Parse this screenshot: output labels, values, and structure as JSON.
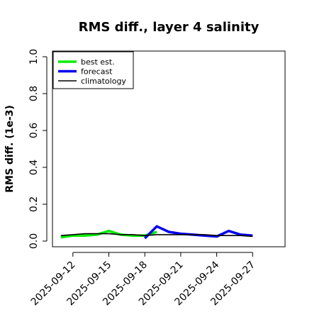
{
  "chart_data": {
    "type": "line",
    "title": "RMS diff., layer 4 salinity",
    "xlabel": "",
    "ylabel": "RMS diff. (1e-3)",
    "ylim": [
      0.0,
      1.0
    ],
    "yticks": [
      "0.0",
      "0.2",
      "0.4",
      "0.6",
      "0.8",
      "1.0"
    ],
    "xticks": [
      {
        "date": "2025-09-12",
        "label": "2025-09-12",
        "color": "#000000"
      },
      {
        "date": "2025-09-15",
        "label": "2025-09-15",
        "color": "#000000"
      },
      {
        "date": "2025-09-18",
        "label": "2025-09-18",
        "color": "#228B22"
      },
      {
        "date": "2025-09-21",
        "label": "2025-09-21",
        "color": "#000000"
      },
      {
        "date": "2025-09-24",
        "label": "2025-09-24",
        "color": "#000000"
      },
      {
        "date": "2025-09-27",
        "label": "2025-09-27",
        "color": "#000000"
      }
    ],
    "xlim": [
      "2025-09-10",
      "2025-09-28"
    ],
    "grid": false,
    "legend_position": "top-left",
    "series": [
      {
        "name": "best est.",
        "color": "#00ee00",
        "points": [
          {
            "x": "2025-09-11",
            "y": 0.02
          },
          {
            "x": "2025-09-12",
            "y": 0.03
          },
          {
            "x": "2025-09-13",
            "y": 0.03
          },
          {
            "x": "2025-09-14",
            "y": 0.035
          },
          {
            "x": "2025-09-15",
            "y": 0.055
          },
          {
            "x": "2025-09-16",
            "y": 0.035
          },
          {
            "x": "2025-09-17",
            "y": 0.03
          },
          {
            "x": "2025-09-18",
            "y": 0.03
          },
          {
            "x": "2025-09-19",
            "y": 0.05
          }
        ]
      },
      {
        "name": "forecast",
        "color": "#0000ee",
        "points": [
          {
            "x": "2025-09-18",
            "y": 0.015
          },
          {
            "x": "2025-09-19",
            "y": 0.08
          },
          {
            "x": "2025-09-20",
            "y": 0.05
          },
          {
            "x": "2025-09-21",
            "y": 0.04
          },
          {
            "x": "2025-09-22",
            "y": 0.035
          },
          {
            "x": "2025-09-23",
            "y": 0.03
          },
          {
            "x": "2025-09-24",
            "y": 0.025
          },
          {
            "x": "2025-09-25",
            "y": 0.055
          },
          {
            "x": "2025-09-26",
            "y": 0.035
          },
          {
            "x": "2025-09-27",
            "y": 0.03
          }
        ]
      },
      {
        "name": "climatology",
        "color": "#000000",
        "points": [
          {
            "x": "2025-09-11",
            "y": 0.03
          },
          {
            "x": "2025-09-12",
            "y": 0.035
          },
          {
            "x": "2025-09-13",
            "y": 0.04
          },
          {
            "x": "2025-09-14",
            "y": 0.04
          },
          {
            "x": "2025-09-15",
            "y": 0.04
          },
          {
            "x": "2025-09-16",
            "y": 0.035
          },
          {
            "x": "2025-09-17",
            "y": 0.035
          },
          {
            "x": "2025-09-18",
            "y": 0.03
          },
          {
            "x": "2025-09-19",
            "y": 0.035
          },
          {
            "x": "2025-09-20",
            "y": 0.035
          },
          {
            "x": "2025-09-21",
            "y": 0.035
          },
          {
            "x": "2025-09-22",
            "y": 0.035
          },
          {
            "x": "2025-09-23",
            "y": 0.035
          },
          {
            "x": "2025-09-24",
            "y": 0.03
          },
          {
            "x": "2025-09-25",
            "y": 0.03
          },
          {
            "x": "2025-09-26",
            "y": 0.03
          },
          {
            "x": "2025-09-27",
            "y": 0.025
          }
        ]
      }
    ]
  }
}
